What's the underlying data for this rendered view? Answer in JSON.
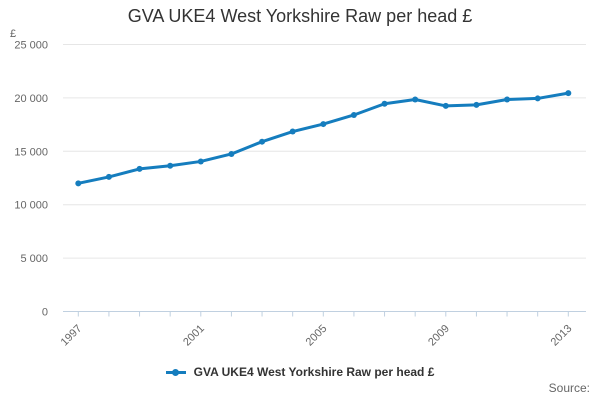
{
  "title": "GVA UKE4 West Yorkshire Raw per head £",
  "source_label": "Source:",
  "legend": {
    "label": "GVA UKE4 West Yorkshire Raw per head £"
  },
  "colors": {
    "line": "#157dbe",
    "grid": "#e6e6e6",
    "axis": "#c0d0e0",
    "tick_label": "#666666",
    "title_text": "#333333",
    "legend_text": "#333333",
    "source_text": "#666666"
  },
  "chart_data": {
    "type": "line",
    "title": "GVA UKE4 West Yorkshire Raw per head £",
    "ylabel_unit": "£",
    "x": [
      1997,
      1998,
      1999,
      2000,
      2001,
      2002,
      2003,
      2004,
      2005,
      2006,
      2007,
      2008,
      2009,
      2010,
      2011,
      2012,
      2013
    ],
    "series": [
      {
        "name": "GVA UKE4 West Yorkshire Raw per head £",
        "values": [
          12000,
          12600,
          13350,
          13650,
          14050,
          14750,
          15900,
          16850,
          17550,
          18400,
          19450,
          19850,
          19250,
          19350,
          19850,
          19950,
          20450
        ]
      }
    ],
    "ylim": [
      0,
      25000
    ],
    "yticks": [
      0,
      5000,
      10000,
      15000,
      20000,
      25000
    ],
    "ytick_labels": [
      "0",
      "5 000",
      "10 000",
      "15 000",
      "20 000",
      "25 000"
    ],
    "xtick_label_every": 4,
    "xtick_labels": [
      "1997",
      "2001",
      "2005",
      "2009",
      "2013"
    ],
    "x_labels_rotation": -45,
    "grid": true,
    "legend_position": "bottom"
  }
}
